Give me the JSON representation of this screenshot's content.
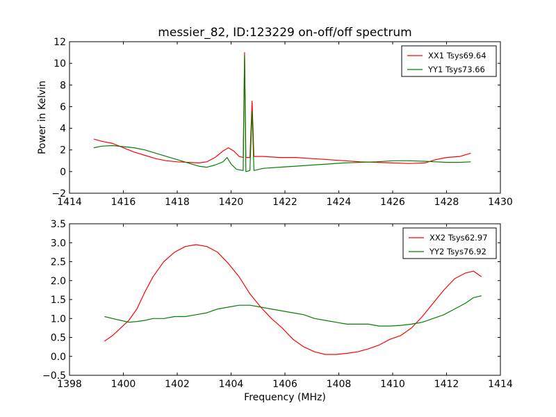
{
  "chart_data": [
    {
      "type": "line",
      "title": "messier_82, ID:123229 on-off/off spectrum",
      "xlabel": "",
      "ylabel": "Power in Kelvin",
      "xlim": [
        1414,
        1430
      ],
      "ylim": [
        -2,
        12
      ],
      "xticks": [
        "1414",
        "1416",
        "1418",
        "1420",
        "1422",
        "1424",
        "1426",
        "1428",
        "1430"
      ],
      "yticks": [
        "−2",
        "0",
        "2",
        "4",
        "6",
        "8",
        "10",
        "12"
      ],
      "legend_position": "top-right",
      "grid": false,
      "series": [
        {
          "name": "XX1 Tsys69.64",
          "color": "#ff0000",
          "points": [
            [
              1414.9,
              3.0
            ],
            [
              1415.2,
              2.8
            ],
            [
              1415.6,
              2.6
            ],
            [
              1416.0,
              2.2
            ],
            [
              1416.4,
              1.8
            ],
            [
              1416.8,
              1.5
            ],
            [
              1417.2,
              1.2
            ],
            [
              1417.6,
              1.0
            ],
            [
              1418.0,
              0.9
            ],
            [
              1418.4,
              0.85
            ],
            [
              1418.8,
              0.8
            ],
            [
              1419.1,
              0.9
            ],
            [
              1419.4,
              1.3
            ],
            [
              1419.7,
              1.9
            ],
            [
              1419.9,
              2.2
            ],
            [
              1420.1,
              1.9
            ],
            [
              1420.3,
              1.4
            ],
            [
              1420.45,
              1.3
            ],
            [
              1420.5,
              11.0
            ],
            [
              1420.55,
              1.3
            ],
            [
              1420.7,
              1.3
            ],
            [
              1420.78,
              6.5
            ],
            [
              1420.85,
              1.4
            ],
            [
              1421.2,
              1.4
            ],
            [
              1421.8,
              1.3
            ],
            [
              1422.4,
              1.3
            ],
            [
              1423.0,
              1.2
            ],
            [
              1423.6,
              1.1
            ],
            [
              1424.2,
              1.0
            ],
            [
              1424.8,
              0.9
            ],
            [
              1425.4,
              0.85
            ],
            [
              1426.0,
              0.8
            ],
            [
              1426.6,
              0.75
            ],
            [
              1427.2,
              0.8
            ],
            [
              1427.6,
              1.1
            ],
            [
              1428.0,
              1.3
            ],
            [
              1428.5,
              1.4
            ],
            [
              1428.9,
              1.7
            ]
          ]
        },
        {
          "name": "YY1 Tsys73.66",
          "color": "#008000",
          "points": [
            [
              1414.9,
              2.2
            ],
            [
              1415.2,
              2.35
            ],
            [
              1415.6,
              2.4
            ],
            [
              1416.0,
              2.3
            ],
            [
              1416.4,
              2.2
            ],
            [
              1416.8,
              2.0
            ],
            [
              1417.2,
              1.7
            ],
            [
              1417.6,
              1.4
            ],
            [
              1418.0,
              1.1
            ],
            [
              1418.4,
              0.8
            ],
            [
              1418.8,
              0.5
            ],
            [
              1419.1,
              0.4
            ],
            [
              1419.4,
              0.6
            ],
            [
              1419.7,
              0.9
            ],
            [
              1419.85,
              1.3
            ],
            [
              1420.0,
              0.7
            ],
            [
              1420.2,
              0.2
            ],
            [
              1420.45,
              0.1
            ],
            [
              1420.5,
              10.7
            ],
            [
              1420.55,
              0.0
            ],
            [
              1420.7,
              0.1
            ],
            [
              1420.78,
              5.6
            ],
            [
              1420.85,
              0.1
            ],
            [
              1421.2,
              0.3
            ],
            [
              1421.8,
              0.4
            ],
            [
              1422.4,
              0.5
            ],
            [
              1423.0,
              0.6
            ],
            [
              1423.6,
              0.7
            ],
            [
              1424.2,
              0.8
            ],
            [
              1424.8,
              0.85
            ],
            [
              1425.4,
              0.9
            ],
            [
              1426.0,
              1.0
            ],
            [
              1426.6,
              1.0
            ],
            [
              1427.2,
              0.95
            ],
            [
              1427.6,
              0.9
            ],
            [
              1428.0,
              0.85
            ],
            [
              1428.5,
              0.85
            ],
            [
              1428.9,
              0.9
            ]
          ]
        }
      ]
    },
    {
      "type": "line",
      "title": "",
      "xlabel": "Frequency (MHz)",
      "ylabel": "",
      "xlim": [
        1398,
        1414
      ],
      "ylim": [
        -0.5,
        3.5
      ],
      "xticks": [
        "1398",
        "1400",
        "1402",
        "1404",
        "1406",
        "1408",
        "1410",
        "1412",
        "1414"
      ],
      "yticks": [
        "−0.5",
        "0.0",
        "0.5",
        "1.0",
        "1.5",
        "2.0",
        "2.5",
        "3.0",
        "3.5"
      ],
      "legend_position": "top-right",
      "grid": false,
      "series": [
        {
          "name": "XX2 Tsys62.97",
          "color": "#ff0000",
          "points": [
            [
              1399.3,
              0.4
            ],
            [
              1399.6,
              0.55
            ],
            [
              1399.9,
              0.75
            ],
            [
              1400.2,
              0.95
            ],
            [
              1400.5,
              1.25
            ],
            [
              1400.8,
              1.7
            ],
            [
              1401.1,
              2.1
            ],
            [
              1401.5,
              2.5
            ],
            [
              1401.9,
              2.75
            ],
            [
              1402.3,
              2.9
            ],
            [
              1402.7,
              2.95
            ],
            [
              1403.1,
              2.9
            ],
            [
              1403.5,
              2.75
            ],
            [
              1403.9,
              2.45
            ],
            [
              1404.3,
              2.1
            ],
            [
              1404.7,
              1.65
            ],
            [
              1405.1,
              1.3
            ],
            [
              1405.5,
              1.0
            ],
            [
              1405.9,
              0.75
            ],
            [
              1406.3,
              0.45
            ],
            [
              1406.7,
              0.25
            ],
            [
              1407.1,
              0.12
            ],
            [
              1407.5,
              0.05
            ],
            [
              1407.9,
              0.05
            ],
            [
              1408.3,
              0.08
            ],
            [
              1408.7,
              0.12
            ],
            [
              1409.1,
              0.2
            ],
            [
              1409.5,
              0.3
            ],
            [
              1409.9,
              0.45
            ],
            [
              1410.3,
              0.55
            ],
            [
              1410.7,
              0.75
            ],
            [
              1411.1,
              1.05
            ],
            [
              1411.5,
              1.4
            ],
            [
              1411.9,
              1.75
            ],
            [
              1412.3,
              2.05
            ],
            [
              1412.7,
              2.2
            ],
            [
              1413.0,
              2.25
            ],
            [
              1413.3,
              2.1
            ]
          ]
        },
        {
          "name": "YY2 Tsys76.92",
          "color": "#008000",
          "points": [
            [
              1399.3,
              1.05
            ],
            [
              1399.6,
              1.0
            ],
            [
              1399.9,
              0.95
            ],
            [
              1400.2,
              0.9
            ],
            [
              1400.5,
              0.92
            ],
            [
              1400.8,
              0.95
            ],
            [
              1401.1,
              1.0
            ],
            [
              1401.5,
              1.0
            ],
            [
              1401.9,
              1.05
            ],
            [
              1402.3,
              1.05
            ],
            [
              1402.7,
              1.1
            ],
            [
              1403.1,
              1.15
            ],
            [
              1403.5,
              1.25
            ],
            [
              1403.9,
              1.3
            ],
            [
              1404.3,
              1.35
            ],
            [
              1404.7,
              1.35
            ],
            [
              1405.1,
              1.3
            ],
            [
              1405.5,
              1.25
            ],
            [
              1405.9,
              1.2
            ],
            [
              1406.3,
              1.15
            ],
            [
              1406.7,
              1.1
            ],
            [
              1407.1,
              1.0
            ],
            [
              1407.5,
              0.95
            ],
            [
              1407.9,
              0.9
            ],
            [
              1408.3,
              0.85
            ],
            [
              1408.7,
              0.85
            ],
            [
              1409.1,
              0.85
            ],
            [
              1409.5,
              0.8
            ],
            [
              1409.9,
              0.8
            ],
            [
              1410.3,
              0.82
            ],
            [
              1410.7,
              0.85
            ],
            [
              1411.1,
              0.9
            ],
            [
              1411.5,
              1.0
            ],
            [
              1411.9,
              1.1
            ],
            [
              1412.3,
              1.25
            ],
            [
              1412.7,
              1.4
            ],
            [
              1413.0,
              1.55
            ],
            [
              1413.3,
              1.6
            ]
          ]
        }
      ]
    }
  ]
}
